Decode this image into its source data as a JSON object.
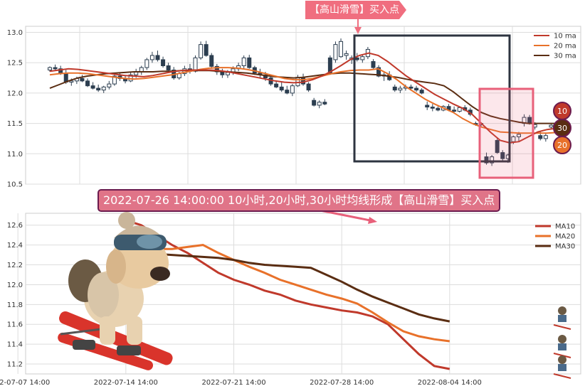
{
  "colors": {
    "ma10": "#c0392b",
    "ma20": "#e8712a",
    "ma30": "#5a2d12",
    "candle": "#2c3e50",
    "grid": "#dddddd",
    "box_dark": "#2e3440",
    "box_pink": "#e8607a",
    "banner_pink": "#f06e7f"
  },
  "banners": {
    "top": "【高山滑雪】买入点",
    "middle": "2022-07-26 14:00:00 10小时,20小时,30小时均线形成【高山滑雪】买入点"
  },
  "badges": [
    "10",
    "30",
    "20"
  ],
  "chart_data": [
    {
      "type": "candlestick",
      "ylim": [
        10.5,
        13.1
      ],
      "yticks": [
        "10.5",
        "11.0",
        "11.5",
        "12.0",
        "12.5",
        "13.0"
      ],
      "legend": [
        "10 ma",
        "20 ma",
        "30 ma"
      ],
      "legend_position": "top-right",
      "candles": [
        [
          12.38,
          12.44,
          12.35,
          12.42
        ],
        [
          12.42,
          12.47,
          12.38,
          12.4
        ],
        [
          12.4,
          12.45,
          12.3,
          12.33
        ],
        [
          12.33,
          12.38,
          12.15,
          12.18
        ],
        [
          12.18,
          12.24,
          12.12,
          12.2
        ],
        [
          12.2,
          12.27,
          12.15,
          12.24
        ],
        [
          12.24,
          12.3,
          12.18,
          12.2
        ],
        [
          12.2,
          12.24,
          12.1,
          12.12
        ],
        [
          12.12,
          12.18,
          12.06,
          12.08
        ],
        [
          12.08,
          12.14,
          12.02,
          12.05
        ],
        [
          12.05,
          12.12,
          12.0,
          12.1
        ],
        [
          12.1,
          12.2,
          12.06,
          12.15
        ],
        [
          12.15,
          12.32,
          12.12,
          12.28
        ],
        [
          12.28,
          12.34,
          12.2,
          12.24
        ],
        [
          12.24,
          12.3,
          12.16,
          12.2
        ],
        [
          12.2,
          12.35,
          12.18,
          12.3
        ],
        [
          12.3,
          12.4,
          12.25,
          12.35
        ],
        [
          12.35,
          12.45,
          12.3,
          12.42
        ],
        [
          12.42,
          12.58,
          12.38,
          12.55
        ],
        [
          12.55,
          12.68,
          12.5,
          12.62
        ],
        [
          12.62,
          12.7,
          12.52,
          12.55
        ],
        [
          12.55,
          12.6,
          12.42,
          12.45
        ],
        [
          12.45,
          12.5,
          12.35,
          12.38
        ],
        [
          12.38,
          12.43,
          12.22,
          12.25
        ],
        [
          12.25,
          12.35,
          12.22,
          12.32
        ],
        [
          12.32,
          12.45,
          12.28,
          12.4
        ],
        [
          12.4,
          12.48,
          12.32,
          12.36
        ],
        [
          12.36,
          12.62,
          12.34,
          12.58
        ],
        [
          12.58,
          12.85,
          12.55,
          12.8
        ],
        [
          12.8,
          12.86,
          12.6,
          12.62
        ],
        [
          12.62,
          12.66,
          12.4,
          12.44
        ],
        [
          12.44,
          12.48,
          12.3,
          12.35
        ],
        [
          12.35,
          12.4,
          12.25,
          12.3
        ],
        [
          12.3,
          12.38,
          12.25,
          12.34
        ],
        [
          12.34,
          12.44,
          12.3,
          12.4
        ],
        [
          12.4,
          12.5,
          12.36,
          12.45
        ],
        [
          12.45,
          12.62,
          12.4,
          12.58
        ],
        [
          12.58,
          12.63,
          12.4,
          12.42
        ],
        [
          12.42,
          12.45,
          12.3,
          12.33
        ],
        [
          12.33,
          12.4,
          12.24,
          12.3
        ],
        [
          12.3,
          12.35,
          12.2,
          12.25
        ],
        [
          12.25,
          12.3,
          12.12,
          12.15
        ],
        [
          12.15,
          12.2,
          12.08,
          12.1
        ],
        [
          12.1,
          12.18,
          12.02,
          12.05
        ],
        [
          12.05,
          12.12,
          11.98,
          12.0
        ],
        [
          12.0,
          12.15,
          11.95,
          12.12
        ],
        [
          12.12,
          12.3,
          12.1,
          12.26
        ],
        [
          12.26,
          12.32,
          12.12,
          12.15
        ],
        [
          12.15,
          12.18,
          12.02,
          12.05
        ],
        [
          11.88,
          11.92,
          11.78,
          11.8
        ],
        [
          11.8,
          11.88,
          11.75,
          11.85
        ],
        [
          11.85,
          11.9,
          11.8,
          11.82
        ],
        [
          12.58,
          12.62,
          12.3,
          12.32
        ],
        [
          12.55,
          12.85,
          12.5,
          12.8
        ],
        [
          12.6,
          12.9,
          12.58,
          12.85
        ],
        [
          12.62,
          12.7,
          12.55,
          12.65
        ],
        [
          12.55,
          12.62,
          12.48,
          12.58
        ],
        [
          12.58,
          12.66,
          12.52,
          12.55
        ],
        [
          12.55,
          12.63,
          12.5,
          12.6
        ],
        [
          12.6,
          12.76,
          12.56,
          12.72
        ],
        [
          12.52,
          12.56,
          12.4,
          12.42
        ],
        [
          12.42,
          12.46,
          12.26,
          12.28
        ],
        [
          12.28,
          12.34,
          12.2,
          12.3
        ],
        [
          12.3,
          12.36,
          12.2,
          12.22
        ],
        [
          12.1,
          12.14,
          12.02,
          12.05
        ],
        [
          12.05,
          12.12,
          12.0,
          12.08
        ],
        [
          12.08,
          12.14,
          12.04,
          12.1
        ],
        [
          12.1,
          12.14,
          12.05,
          12.08
        ],
        [
          12.08,
          12.12,
          12.02,
          12.05
        ],
        [
          12.05,
          12.08,
          11.98,
          12.0
        ],
        [
          11.8,
          11.86,
          11.72,
          11.77
        ],
        [
          11.77,
          11.82,
          11.7,
          11.75
        ],
        [
          11.75,
          11.78,
          11.7,
          11.72
        ],
        [
          11.72,
          11.8,
          11.7,
          11.78
        ],
        [
          11.78,
          11.82,
          11.7,
          11.72
        ],
        [
          11.72,
          11.78,
          11.66,
          11.7
        ],
        [
          11.7,
          11.78,
          11.68,
          11.76
        ],
        [
          11.76,
          11.8,
          11.7,
          11.72
        ],
        [
          11.72,
          11.76,
          11.62,
          11.65
        ],
        [
          11.5,
          11.53,
          11.46,
          11.48
        ],
        [
          11.48,
          11.52,
          11.45,
          11.5
        ],
        [
          10.95,
          11.02,
          10.82,
          10.85
        ],
        [
          10.85,
          10.98,
          10.8,
          10.95
        ],
        [
          11.22,
          11.26,
          11.0,
          11.02
        ],
        [
          11.02,
          11.06,
          10.86,
          10.92
        ],
        [
          10.92,
          11.0,
          10.85,
          10.98
        ],
        [
          11.2,
          11.3,
          11.16,
          11.28
        ],
        [
          11.28,
          11.36,
          11.2,
          11.32
        ],
        [
          11.5,
          11.65,
          11.45,
          11.6
        ],
        [
          11.6,
          11.64,
          11.48,
          11.5
        ],
        [
          11.44,
          11.52,
          11.4,
          11.48
        ],
        [
          11.3,
          11.36,
          11.22,
          11.25
        ],
        [
          11.25,
          11.34,
          11.2,
          11.3
        ],
        [
          11.44,
          11.5,
          11.4,
          11.47
        ],
        [
          11.47,
          11.52,
          11.44,
          11.5
        ]
      ],
      "ma10": [
        12.36,
        12.38,
        12.4,
        12.39,
        12.37,
        12.35,
        12.33,
        12.31,
        12.29,
        12.28,
        12.27,
        12.29,
        12.32,
        12.35,
        12.37,
        12.38,
        12.38,
        12.38,
        12.37,
        12.35,
        12.32,
        12.29,
        12.26,
        12.23,
        12.2,
        12.18,
        12.17,
        12.18,
        12.22,
        12.28,
        12.36,
        12.45,
        12.55,
        12.62,
        12.66,
        12.62,
        12.52,
        12.4,
        12.28,
        12.18,
        12.08,
        11.98,
        11.9,
        11.82,
        11.75,
        11.65,
        11.5,
        11.35,
        11.22,
        11.18,
        11.2,
        11.28,
        11.36,
        11.4,
        11.42
      ],
      "ma20": [
        12.3,
        12.32,
        12.33,
        12.33,
        12.32,
        12.3,
        12.28,
        12.26,
        12.24,
        12.23,
        12.24,
        12.26,
        12.28,
        12.3,
        12.33,
        12.36,
        12.39,
        12.41,
        12.42,
        12.42,
        12.41,
        12.39,
        12.36,
        12.32,
        12.28,
        12.24,
        12.22,
        12.22,
        12.24,
        12.28,
        12.32,
        12.35,
        12.37,
        12.38,
        12.38,
        12.4,
        12.32,
        12.22,
        12.1,
        12.0,
        11.9,
        11.82,
        11.75,
        11.68,
        11.58,
        11.5,
        11.44,
        11.4,
        11.36,
        11.35,
        11.34,
        11.34,
        11.34,
        11.34,
        11.35
      ],
      "ma30": [
        12.08,
        12.14,
        12.2,
        12.25,
        12.28,
        12.3,
        12.32,
        12.33,
        12.34,
        12.35,
        12.35,
        12.35,
        12.36,
        12.36,
        12.37,
        12.37,
        12.37,
        12.37,
        12.36,
        12.35,
        12.34,
        12.33,
        12.31,
        12.29,
        12.27,
        12.26,
        12.25,
        12.26,
        12.28,
        12.3,
        12.32,
        12.33,
        12.33,
        12.32,
        12.31,
        12.3,
        12.28,
        12.26,
        12.23,
        12.2,
        12.18,
        12.16,
        12.12,
        12.02,
        11.9,
        11.78,
        11.68,
        11.62,
        11.58,
        11.55,
        11.52,
        11.5,
        11.5,
        11.5,
        11.5
      ]
    },
    {
      "type": "line",
      "ylim": [
        11.1,
        12.72
      ],
      "yticks": [
        "11.2",
        "11.4",
        "11.6",
        "11.8",
        "12.0",
        "12.2",
        "12.4",
        "12.6"
      ],
      "x_tick_labels": [
        "2022-07-07 14:00",
        "2022-07-14 14:00",
        "2022-07-21 14:00",
        "2022-07-28 14:00",
        "2022-08-04 14:00"
      ],
      "legend": [
        "MA10",
        "MA20",
        "MA30"
      ],
      "legend_position": "top-right",
      "series": [
        {
          "name": "MA10",
          "values": [
            12.65,
            12.6,
            12.5,
            12.4,
            12.32,
            12.22,
            12.12,
            12.05,
            12.0,
            11.94,
            11.9,
            11.84,
            11.8,
            11.77,
            11.74,
            11.72,
            11.68,
            11.6,
            11.45,
            11.3,
            11.18,
            11.15
          ]
        },
        {
          "name": "MA20",
          "values": [
            12.35,
            12.38,
            12.36,
            12.36,
            12.38,
            12.4,
            12.32,
            12.25,
            12.18,
            12.12,
            12.05,
            12.0,
            11.95,
            11.9,
            11.86,
            11.81,
            11.72,
            11.62,
            11.53,
            11.48,
            11.45,
            11.43
          ]
        },
        {
          "name": "MA30",
          "values": [
            12.33,
            12.32,
            12.31,
            12.3,
            12.29,
            12.28,
            12.27,
            12.25,
            12.22,
            12.2,
            12.19,
            12.18,
            12.17,
            12.1,
            12.03,
            11.95,
            11.88,
            11.82,
            11.76,
            11.7,
            11.66,
            11.63
          ]
        }
      ],
      "x_range": [
        -6.5,
        29.5
      ]
    }
  ]
}
